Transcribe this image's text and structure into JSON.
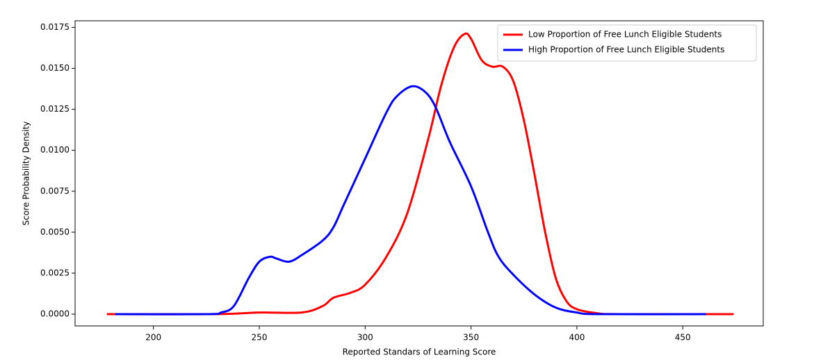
{
  "chart_data": {
    "type": "line",
    "xlabel": "Reported Standars of Learning Score",
    "ylabel": "Score Probability Density",
    "xlim": [
      163,
      488
    ],
    "ylim": [
      -0.00072,
      0.0179
    ],
    "xticks": [
      200,
      250,
      300,
      350,
      400,
      450
    ],
    "yticks": [
      {
        "value": 0,
        "label": "0.0000"
      },
      {
        "value": 0.0025,
        "label": "0.0025"
      },
      {
        "value": 0.005,
        "label": "0.0050"
      },
      {
        "value": 0.0075,
        "label": "0.0075"
      },
      {
        "value": 0.01,
        "label": "0.0100"
      },
      {
        "value": 0.0125,
        "label": "0.0125"
      },
      {
        "value": 0.015,
        "label": "0.0150"
      },
      {
        "value": 0.0175,
        "label": "0.0175"
      }
    ],
    "legend": "upper right",
    "series": [
      {
        "name": "Low Proportion of Free Lunch Eligible Students",
        "color": "#ff0000",
        "x": [
          178,
          230,
          250,
          270,
          280,
          285,
          293,
          300,
          310,
          320,
          330,
          336,
          342,
          347,
          350,
          355,
          360,
          365,
          370,
          375,
          380,
          385,
          390,
          395,
          400,
          410,
          420,
          474
        ],
        "values": [
          0,
          0,
          0.0001,
          0.0001,
          0.0005,
          0.001,
          0.0013,
          0.0018,
          0.0035,
          0.0062,
          0.0108,
          0.014,
          0.0163,
          0.0171,
          0.0168,
          0.0155,
          0.0151,
          0.0151,
          0.0142,
          0.0118,
          0.0085,
          0.005,
          0.0022,
          0.0008,
          0.0003,
          5e-05,
          0,
          0
        ]
      },
      {
        "name": "High Proportion of Free Lunch Eligible Students",
        "color": "#0000ff",
        "x": [
          182,
          225,
          232,
          238,
          245,
          250,
          255,
          258,
          264,
          270,
          280,
          285,
          290,
          300,
          310,
          315,
          322,
          328,
          333,
          340,
          350,
          358,
          363,
          370,
          380,
          390,
          400,
          410,
          461
        ],
        "values": [
          0,
          0,
          0.0001,
          0.0005,
          0.0022,
          0.0032,
          0.0035,
          0.0034,
          0.0032,
          0.0036,
          0.0045,
          0.0053,
          0.0067,
          0.0095,
          0.0123,
          0.0133,
          0.0139,
          0.0136,
          0.0127,
          0.0105,
          0.0078,
          0.005,
          0.0035,
          0.0024,
          0.0012,
          0.0004,
          0.0001,
          0,
          0
        ]
      }
    ]
  }
}
